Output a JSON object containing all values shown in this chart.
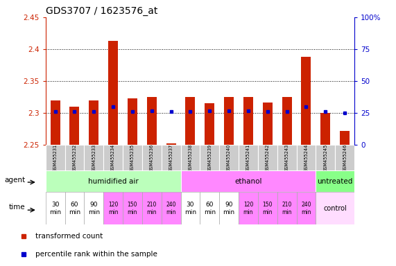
{
  "title": "GDS3707 / 1623576_at",
  "samples": [
    "GSM455231",
    "GSM455232",
    "GSM455233",
    "GSM455234",
    "GSM455235",
    "GSM455236",
    "GSM455237",
    "GSM455238",
    "GSM455239",
    "GSM455240",
    "GSM455241",
    "GSM455242",
    "GSM455243",
    "GSM455244",
    "GSM455245",
    "GSM455246"
  ],
  "red_values": [
    2.32,
    2.31,
    2.32,
    2.413,
    2.323,
    2.325,
    2.253,
    2.325,
    2.315,
    2.325,
    2.325,
    2.317,
    2.325,
    2.388,
    2.3,
    2.272
  ],
  "blue_values": [
    26,
    26,
    26,
    30,
    26,
    27,
    26,
    26,
    27,
    27,
    27,
    26,
    26,
    30,
    26,
    25
  ],
  "ylim_left": [
    2.25,
    2.45
  ],
  "ylim_right": [
    0,
    100
  ],
  "yticks_left": [
    2.25,
    2.3,
    2.35,
    2.4,
    2.45
  ],
  "yticks_right": [
    0,
    25,
    50,
    75,
    100
  ],
  "ytick_labels_left": [
    "2.25",
    "2.3",
    "2.35",
    "2.4",
    "2.45"
  ],
  "ytick_labels_right": [
    "0",
    "25",
    "50",
    "75",
    "100%"
  ],
  "hlines": [
    2.3,
    2.35,
    2.4
  ],
  "bar_color": "#cc2200",
  "dot_color": "#0000cc",
  "agent_groups": [
    {
      "label": "humidified air",
      "start": 0,
      "end": 7,
      "color": "#bbffbb"
    },
    {
      "label": "ethanol",
      "start": 7,
      "end": 14,
      "color": "#ff88ff"
    },
    {
      "label": "untreated",
      "start": 14,
      "end": 16,
      "color": "#88ff88"
    }
  ],
  "time_group_colors": [
    "#ffffff",
    "#ffffff",
    "#ffffff",
    "#ff88ff",
    "#ff88ff",
    "#ff88ff",
    "#ff88ff",
    "#ffffff",
    "#ffffff",
    "#ffffff",
    "#ff88ff",
    "#ff88ff",
    "#ff88ff",
    "#ff88ff"
  ],
  "time_labels_14": [
    "30\nmin",
    "60\nmin",
    "90\nmin",
    "120\nmin",
    "150\nmin",
    "210\nmin",
    "240\nmin",
    "30\nmin",
    "60\nmin",
    "90\nmin",
    "120\nmin",
    "150\nmin",
    "210\nmin",
    "240\nmin"
  ],
  "control_color": "#ffddff",
  "bg_color": "#ffffff",
  "plot_bg": "#ffffff",
  "ylabel_left_color": "#cc2200",
  "ylabel_right_color": "#0000cc",
  "sample_bg": "#cccccc",
  "title_fontsize": 10,
  "bar_width": 0.5
}
